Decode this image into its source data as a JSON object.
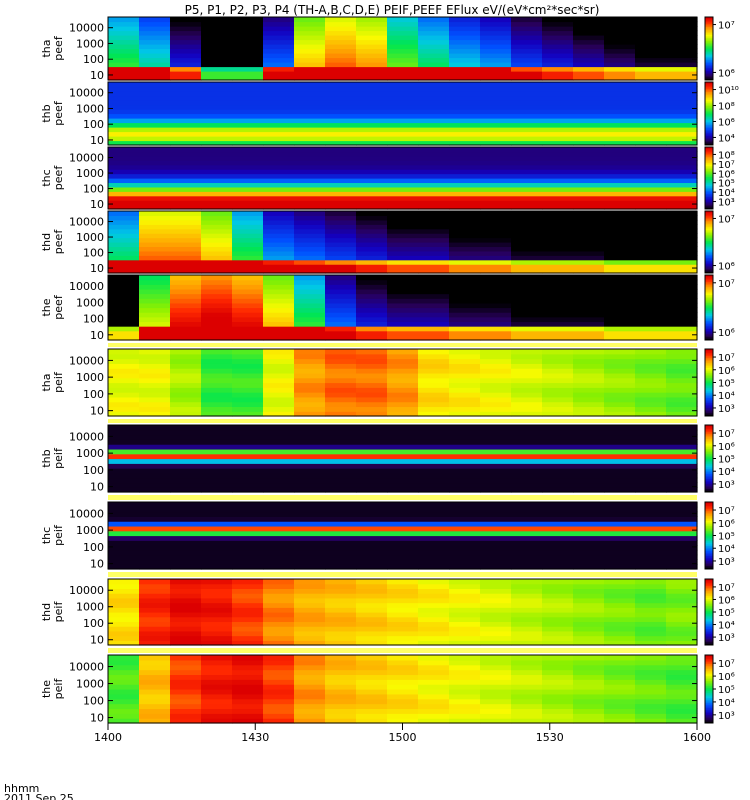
{
  "chart_data": {
    "type": "heatmap",
    "title": "P5, P1, P2, P3, P4 (TH-A,B,C,D,E) PEIF,PEEF EFlux eV/(eV*cm²*sec*sr)",
    "xlabel": "hhmm",
    "date_label": "2011 Sep 25",
    "x_ticks": [
      "1400",
      "1430",
      "1500",
      "1530",
      "1600"
    ],
    "x_range": [
      "1400",
      "1600"
    ],
    "y_scale": "log",
    "panels": [
      {
        "probe": "tha",
        "product": "peef",
        "y_ticks": [
          "10",
          "100",
          "1000",
          "10000"
        ],
        "cbar_ticks": [
          "10⁶",
          "10⁷"
        ],
        "cbar_log": [
          5.5,
          7.5
        ],
        "profile": {
          "type": "peef_low",
          "base": 6.3,
          "bandstart": 0.85,
          "bands": [
            7.8,
            7.6
          ]
        },
        "time": [
          0.3,
          0.1,
          -0.4,
          -1.2,
          -1.2,
          -0.2,
          0.8,
          1.0,
          0.9,
          0.4,
          0.2,
          0.0,
          -0.1,
          -0.3,
          -0.4,
          -0.5,
          -0.6,
          -0.7,
          -0.7
        ]
      },
      {
        "probe": "thb",
        "product": "peef",
        "y_ticks": [
          "10",
          "100",
          "1000",
          "10000"
        ],
        "cbar_ticks": [
          "10⁴",
          "10⁶",
          "10⁸",
          "10¹⁰"
        ],
        "cbar_log": [
          3,
          10.5
        ],
        "profile": {
          "type": "gauss",
          "peak": 8.5,
          "base": 4.6,
          "center": 0.15,
          "width": 0.2
        },
        "time": [
          0,
          0,
          0,
          0,
          0,
          0,
          0,
          0,
          0,
          0,
          0,
          0,
          0,
          0,
          0,
          0,
          0,
          0,
          0
        ]
      },
      {
        "probe": "thc",
        "product": "peef",
        "y_ticks": [
          "10",
          "100",
          "1000",
          "10000"
        ],
        "cbar_ticks": [
          "10³",
          "10⁴",
          "10⁵",
          "10⁶",
          "10⁷",
          "10⁸"
        ],
        "cbar_log": [
          2.5,
          8.2
        ],
        "profile": {
          "type": "gauss_hi",
          "peak": 8.6,
          "base": 3.0,
          "center": 0.05,
          "width": 0.32,
          "top": 2.0
        },
        "time": [
          0,
          0,
          0,
          0,
          0,
          0,
          0,
          0,
          0,
          0,
          0,
          0,
          0,
          0,
          0,
          0,
          0,
          0,
          0
        ]
      },
      {
        "probe": "thd",
        "product": "peef",
        "y_ticks": [
          "10",
          "100",
          "1000",
          "10000"
        ],
        "cbar_ticks": [
          "10⁶",
          "10⁷"
        ],
        "cbar_log": [
          5.5,
          7.5
        ],
        "profile": {
          "type": "peef_low",
          "base": 6.3,
          "bandstart": 0.85,
          "bands": [
            7.8,
            7.5
          ]
        },
        "time": [
          0.2,
          1.0,
          1.0,
          0.8,
          0.3,
          -0.1,
          -0.2,
          -0.3,
          -0.4,
          -0.5,
          -0.5,
          -0.6,
          -0.6,
          -0.7,
          -0.7,
          -0.7,
          -0.8,
          -0.8,
          -0.8
        ]
      },
      {
        "probe": "the",
        "product": "peef",
        "y_ticks": [
          "10",
          "100",
          "1000",
          "10000"
        ],
        "cbar_ticks": [
          "10⁶",
          "10⁷"
        ],
        "cbar_log": [
          5.5,
          7.5
        ],
        "profile": {
          "type": "peef_low",
          "base": 6.3,
          "bandstart": 0.85,
          "bands": [
            7.8,
            7.6
          ]
        },
        "time": [
          -0.8,
          0.6,
          1.2,
          1.3,
          1.2,
          0.8,
          0.3,
          -0.2,
          -0.4,
          -0.5,
          -0.5,
          -0.6,
          -0.6,
          -0.7,
          -0.7,
          -0.7,
          -0.8,
          -0.8,
          -0.8
        ]
      },
      {
        "probe": "tha",
        "product": "peif",
        "y_ticks": [
          "10",
          "100",
          "1000",
          "10000"
        ],
        "cbar_ticks": [
          "10³",
          "10⁴",
          "10⁵",
          "10⁶",
          "10⁷"
        ],
        "cbar_log": [
          2.5,
          7.3
        ],
        "profile": {
          "type": "flat",
          "base": 5.6
        },
        "time": [
          0.3,
          0.3,
          0.0,
          -0.5,
          -0.5,
          0.3,
          0.9,
          1.1,
          1.1,
          0.9,
          0.5,
          0.4,
          0.3,
          0.2,
          0.1,
          0.0,
          -0.1,
          -0.2,
          -0.3
        ]
      },
      {
        "probe": "thb",
        "product": "peif",
        "y_ticks": [
          "10",
          "100",
          "1000",
          "10000"
        ],
        "cbar_ticks": [
          "10³",
          "10⁴",
          "10⁵",
          "10⁶",
          "10⁷"
        ],
        "cbar_log": [
          2.5,
          7.3
        ],
        "profile": {
          "type": "gauss",
          "peak": 7.0,
          "base": 2.6,
          "center": 0.55,
          "width": 0.09
        },
        "time": [
          0,
          0,
          0,
          0,
          0,
          0,
          0,
          0,
          0,
          0,
          0,
          0,
          0,
          0,
          0,
          0,
          0,
          0,
          0
        ]
      },
      {
        "probe": "thc",
        "product": "peif",
        "y_ticks": [
          "10",
          "100",
          "1000",
          "10000"
        ],
        "cbar_ticks": [
          "10³",
          "10⁴",
          "10⁵",
          "10⁶",
          "10⁷"
        ],
        "cbar_log": [
          2.5,
          7.3
        ],
        "profile": {
          "type": "gauss",
          "peak": 7.0,
          "base": 2.6,
          "center": 0.6,
          "width": 0.08
        },
        "time": [
          0,
          0,
          0,
          0,
          0,
          0,
          0,
          0,
          0,
          0,
          0,
          0,
          0,
          0,
          0,
          0,
          0,
          0,
          0
        ]
      },
      {
        "probe": "thd",
        "product": "peif",
        "y_ticks": [
          "10",
          "100",
          "1000",
          "10000"
        ],
        "cbar_ticks": [
          "10³",
          "10⁴",
          "10⁵",
          "10⁶",
          "10⁷"
        ],
        "cbar_log": [
          2.5,
          7.3
        ],
        "profile": {
          "type": "flat",
          "base": 5.7
        },
        "time": [
          0.4,
          1.3,
          1.5,
          1.4,
          1.2,
          0.9,
          0.7,
          0.6,
          0.5,
          0.4,
          0.3,
          0.2,
          0.1,
          0.0,
          -0.1,
          -0.2,
          -0.3,
          -0.4,
          -0.3
        ]
      },
      {
        "probe": "the",
        "product": "peif",
        "y_ticks": [
          "10",
          "100",
          "1000",
          "10000"
        ],
        "cbar_ticks": [
          "10³",
          "10⁴",
          "10⁵",
          "10⁶",
          "10⁷"
        ],
        "cbar_log": [
          2.5,
          7.3
        ],
        "profile": {
          "type": "flat",
          "base": 5.7
        },
        "time": [
          -0.5,
          0.6,
          1.2,
          1.4,
          1.5,
          1.2,
          0.8,
          0.6,
          0.5,
          0.4,
          0.3,
          0.2,
          0.1,
          0.0,
          -0.1,
          -0.2,
          -0.3,
          -0.4,
          -0.5
        ]
      }
    ]
  }
}
